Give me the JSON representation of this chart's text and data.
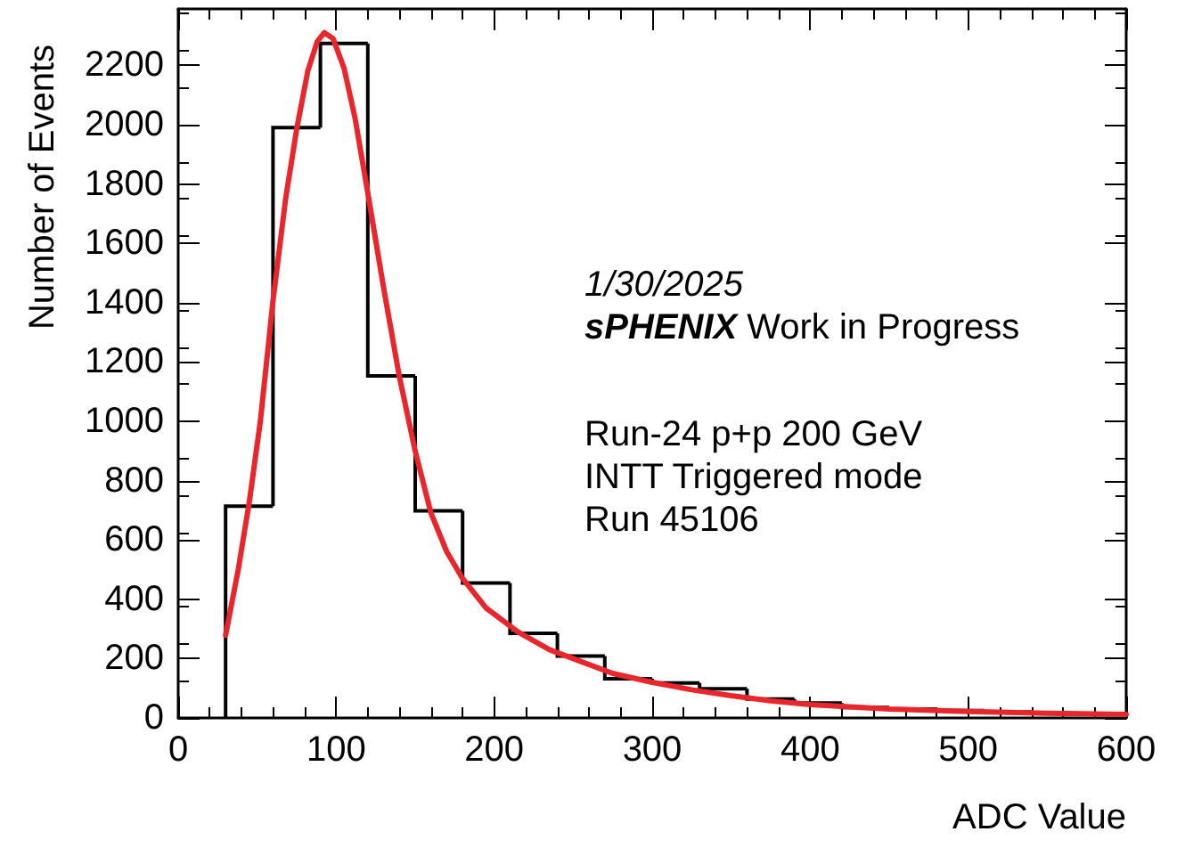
{
  "chart_data": {
    "type": "histogram",
    "xlabel": "ADC Value",
    "ylabel": "Number of Events",
    "annotations": [
      "1/30/2025",
      "sPHENIX Work in Progress",
      "Run-24 p+p 200 GeV",
      "INTT Triggered mode",
      "Run 45106"
    ],
    "series": [
      {
        "color": "#000000",
        "bins": [
          30,
          60,
          90,
          120,
          150,
          180,
          210,
          240,
          270,
          300,
          330,
          360,
          390,
          420,
          450,
          480,
          510,
          540,
          570,
          600
        ],
        "values": [
          714,
          1990,
          2274,
          1153,
          698,
          455,
          285,
          209,
          132,
          118,
          98,
          64,
          50,
          35,
          30,
          25,
          20,
          16,
          14
        ]
      },
      {
        "type": "line",
        "color": "#e8262b",
        "x": [
          30,
          38,
          45,
          52,
          60,
          68,
          75,
          82,
          88,
          92.5,
          98,
          105,
          112,
          120,
          130,
          140,
          150,
          160,
          170,
          180,
          195,
          215,
          235,
          250,
          275,
          300,
          325,
          350,
          375,
          400,
          450,
          500,
          550,
          600
        ],
        "values": [
          279,
          500,
          728,
          1000,
          1406,
          1750,
          1985,
          2180,
          2280,
          2310,
          2290,
          2190,
          2020,
          1770,
          1450,
          1150,
          900,
          690,
          560,
          470,
          370,
          290,
          230,
          200,
          150,
          120,
          95,
          75,
          58,
          45,
          30,
          22,
          16,
          12
        ]
      }
    ],
    "xlim": [
      0,
      600
    ],
    "xticks": [
      0,
      100,
      200,
      300,
      400,
      500,
      600
    ],
    "ylim": [
      0,
      2390
    ],
    "yticks": [
      0,
      200,
      400,
      600,
      800,
      1000,
      1200,
      1400,
      1600,
      1800,
      2000,
      2200
    ],
    "grid": false,
    "marker": "none",
    "line_style": "solid"
  }
}
